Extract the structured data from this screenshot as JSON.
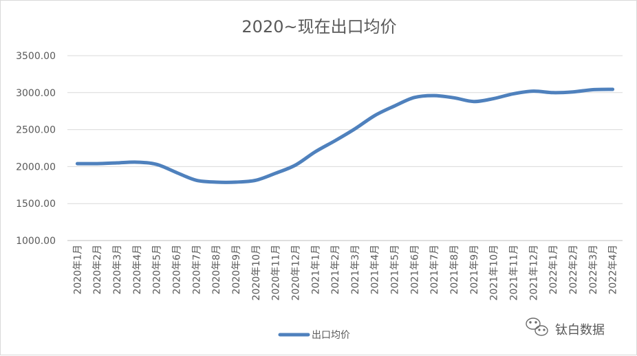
{
  "chart_data": {
    "type": "line",
    "title": "2020~现在出口均价",
    "xlabel": "",
    "ylabel": "",
    "ylim": [
      1000,
      3500
    ],
    "yticks": [
      1000,
      1500,
      2000,
      2500,
      3000,
      3500
    ],
    "ytick_labels": [
      "1000.00",
      "1500.00",
      "2000.00",
      "2500.00",
      "3000.00",
      "3500.00"
    ],
    "grid": true,
    "legend_position": "bottom",
    "categories": [
      "2020年1月",
      "2020年2月",
      "2020年3月",
      "2020年4月",
      "2020年5月",
      "2020年6月",
      "2020年7月",
      "2020年8月",
      "2020年9月",
      "2020年10月",
      "2020年11月",
      "2020年12月",
      "2021年1月",
      "2021年2月",
      "2021年3月",
      "2021年4月",
      "2021年5月",
      "2021年6月",
      "2021年7月",
      "2021年8月",
      "2021年9月",
      "2021年10月",
      "2021年11月",
      "2021年12月",
      "2022年1月",
      "2022年2月",
      "2022年3月",
      "2022年4月"
    ],
    "series": [
      {
        "name": "出口均价",
        "color": "#4f81bd",
        "values": [
          2040,
          2040,
          2050,
          2060,
          2030,
          1920,
          1815,
          1790,
          1790,
          1815,
          1910,
          2020,
          2200,
          2350,
          2510,
          2690,
          2820,
          2935,
          2960,
          2930,
          2880,
          2920,
          2985,
          3020,
          3000,
          3010,
          3040,
          3045
        ]
      }
    ]
  },
  "watermark": {
    "text": "钛白数据",
    "icon": "wechat-icon"
  }
}
